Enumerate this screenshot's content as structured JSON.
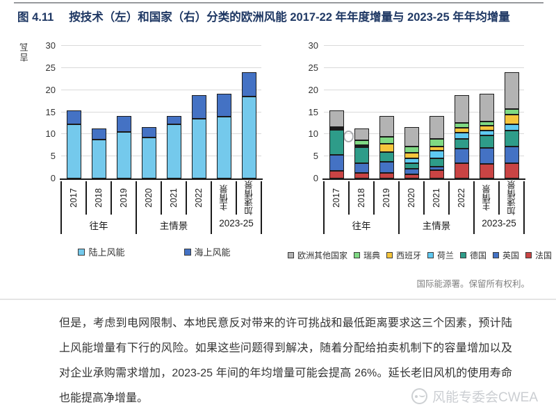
{
  "page": {
    "figure_label": "图 4.11",
    "title": "按技术（左）和国家（右）分类的欧洲风能 2017-22 年年度增量与 2023-25 年年均增量",
    "source": "国际能源署。保留所有权利。",
    "paragraph": "但是，考虑到电网限制、本地民意反对带来的许可挑战和最低距离要求这三个因素，预计陆上风能增量有下行的风险。如果这些问题得到解决，随着分配给拍卖机制下的容量增加以及对企业承购需求增加，2023-25 年间的年均增量可能会提高 26%。延长老旧风机的使用寿命也能提高净增量。",
    "watermark": "风能专委会CWEA",
    "accent_color": "#1F3864"
  },
  "chart_data": [
    {
      "type": "bar",
      "stacked": true,
      "ylabel": "吉瓦",
      "ylim": [
        0,
        30
      ],
      "yticks": [
        0,
        5,
        10,
        15,
        20,
        25,
        30
      ],
      "grid": true,
      "categories": [
        "2017",
        "2018",
        "2019",
        "2020",
        "2021",
        "2022",
        "主情景",
        "加速情景"
      ],
      "groups": [
        {
          "label": "往年",
          "span": 3
        },
        {
          "label": "主情景",
          "span": 3
        },
        {
          "label": "2023-25",
          "span": 2
        }
      ],
      "series": [
        {
          "name": "陆上风能",
          "color": "#74C9EC",
          "values": [
            12.2,
            8.8,
            10.5,
            9.2,
            12.2,
            13.5,
            14.0,
            18.5
          ]
        },
        {
          "name": "海上风能",
          "color": "#4472C4",
          "values": [
            3.2,
            2.5,
            3.7,
            2.4,
            1.9,
            5.4,
            5.1,
            5.5
          ]
        }
      ],
      "legend_reverse": false,
      "legend_position": "bottom"
    },
    {
      "type": "bar",
      "stacked": true,
      "ylabel": "",
      "ylim": [
        0,
        30
      ],
      "yticks": [
        0,
        5,
        10,
        15,
        20,
        25,
        30
      ],
      "grid": true,
      "categories": [
        "2017",
        "2018",
        "2019",
        "2020",
        "2021",
        "2022",
        "主情景",
        "加速情景"
      ],
      "groups": [
        {
          "label": "往年",
          "span": 3
        },
        {
          "label": "主情景",
          "span": 3
        },
        {
          "label": "2023-25",
          "span": 2
        }
      ],
      "series": [
        {
          "name": "法国",
          "color": "#C94444",
          "values": [
            1.8,
            1.2,
            1.3,
            0.9,
            1.9,
            3.4,
            3.3,
            3.5
          ]
        },
        {
          "name": "英国",
          "color": "#4472C4",
          "values": [
            3.5,
            2.2,
            2.4,
            1.3,
            0.7,
            3.3,
            3.6,
            3.7
          ]
        },
        {
          "name": "德国",
          "color": "#2E9C89",
          "values": [
            5.7,
            3.7,
            2.2,
            1.3,
            1.9,
            2.3,
            2.8,
            3.6
          ]
        },
        {
          "name": "荷兰",
          "color": "#5FC9F1",
          "values": [
            0.2,
            0.3,
            0.1,
            1.1,
            1.8,
            1.3,
            1.2,
            1.4
          ]
        },
        {
          "name": "西班牙",
          "color": "#F5C53C",
          "values": [
            0.1,
            0.2,
            1.9,
            1.2,
            0.9,
            1.1,
            1.1,
            2.2
          ]
        },
        {
          "name": "瑞典",
          "color": "#7FD983",
          "values": [
            0.3,
            1.0,
            1.6,
            1.4,
            1.8,
            1.2,
            0.9,
            1.3
          ]
        },
        {
          "name": "欧洲其他国家",
          "color": "#B3B3B3",
          "values": [
            3.8,
            2.7,
            4.7,
            4.4,
            5.1,
            6.3,
            6.2,
            8.3
          ]
        }
      ],
      "legend_reverse": true,
      "legend_position": "bottom"
    }
  ]
}
